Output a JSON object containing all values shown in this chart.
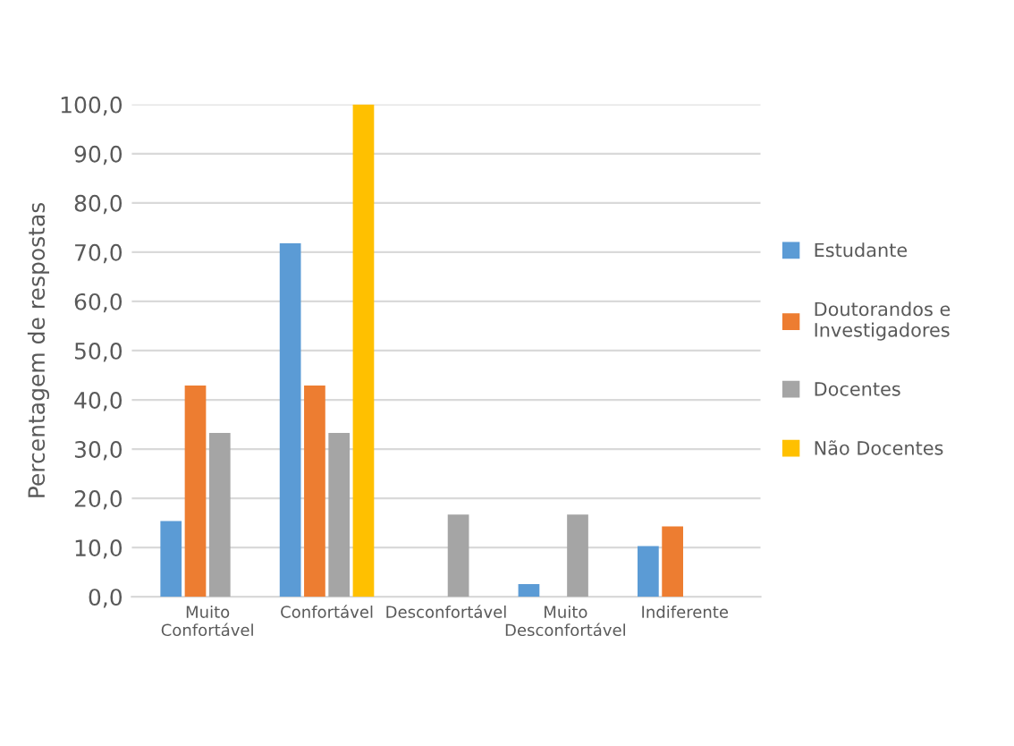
{
  "chart_data": {
    "type": "bar",
    "ylabel": "Percentagem de respostas",
    "categories": [
      "Muito\nConfortável",
      "Confortável",
      "Desconfortável",
      "Muito\nDesconfortável",
      "Indiferente"
    ],
    "series": [
      {
        "name": "Estudante",
        "color": "#5b9bd5",
        "values": [
          15.4,
          71.8,
          0,
          2.6,
          10.3
        ]
      },
      {
        "name": "Doutorandos e Investigadores",
        "color": "#ed7d31",
        "values": [
          42.9,
          42.9,
          0,
          0,
          14.3
        ]
      },
      {
        "name": "Docentes",
        "color": "#a5a5a5",
        "values": [
          33.3,
          33.3,
          16.7,
          16.7,
          0
        ]
      },
      {
        "name": "Não Docentes",
        "color": "#ffc000",
        "values": [
          0,
          100,
          0,
          0,
          0
        ]
      }
    ],
    "ylim": [
      0,
      100
    ],
    "yticks": [
      {
        "value": 0,
        "label": "0,0"
      },
      {
        "value": 10,
        "label": "10,0"
      },
      {
        "value": 20,
        "label": "20,0"
      },
      {
        "value": 30,
        "label": "30,0"
      },
      {
        "value": 40,
        "label": "40,0"
      },
      {
        "value": 50,
        "label": "50,0"
      },
      {
        "value": 60,
        "label": "60,0"
      },
      {
        "value": 70,
        "label": "70,0"
      },
      {
        "value": 80,
        "label": "80,0"
      },
      {
        "value": 90,
        "label": "90,0"
      },
      {
        "value": 100,
        "label": "100,0"
      }
    ],
    "grid": "y",
    "legend": "right"
  }
}
